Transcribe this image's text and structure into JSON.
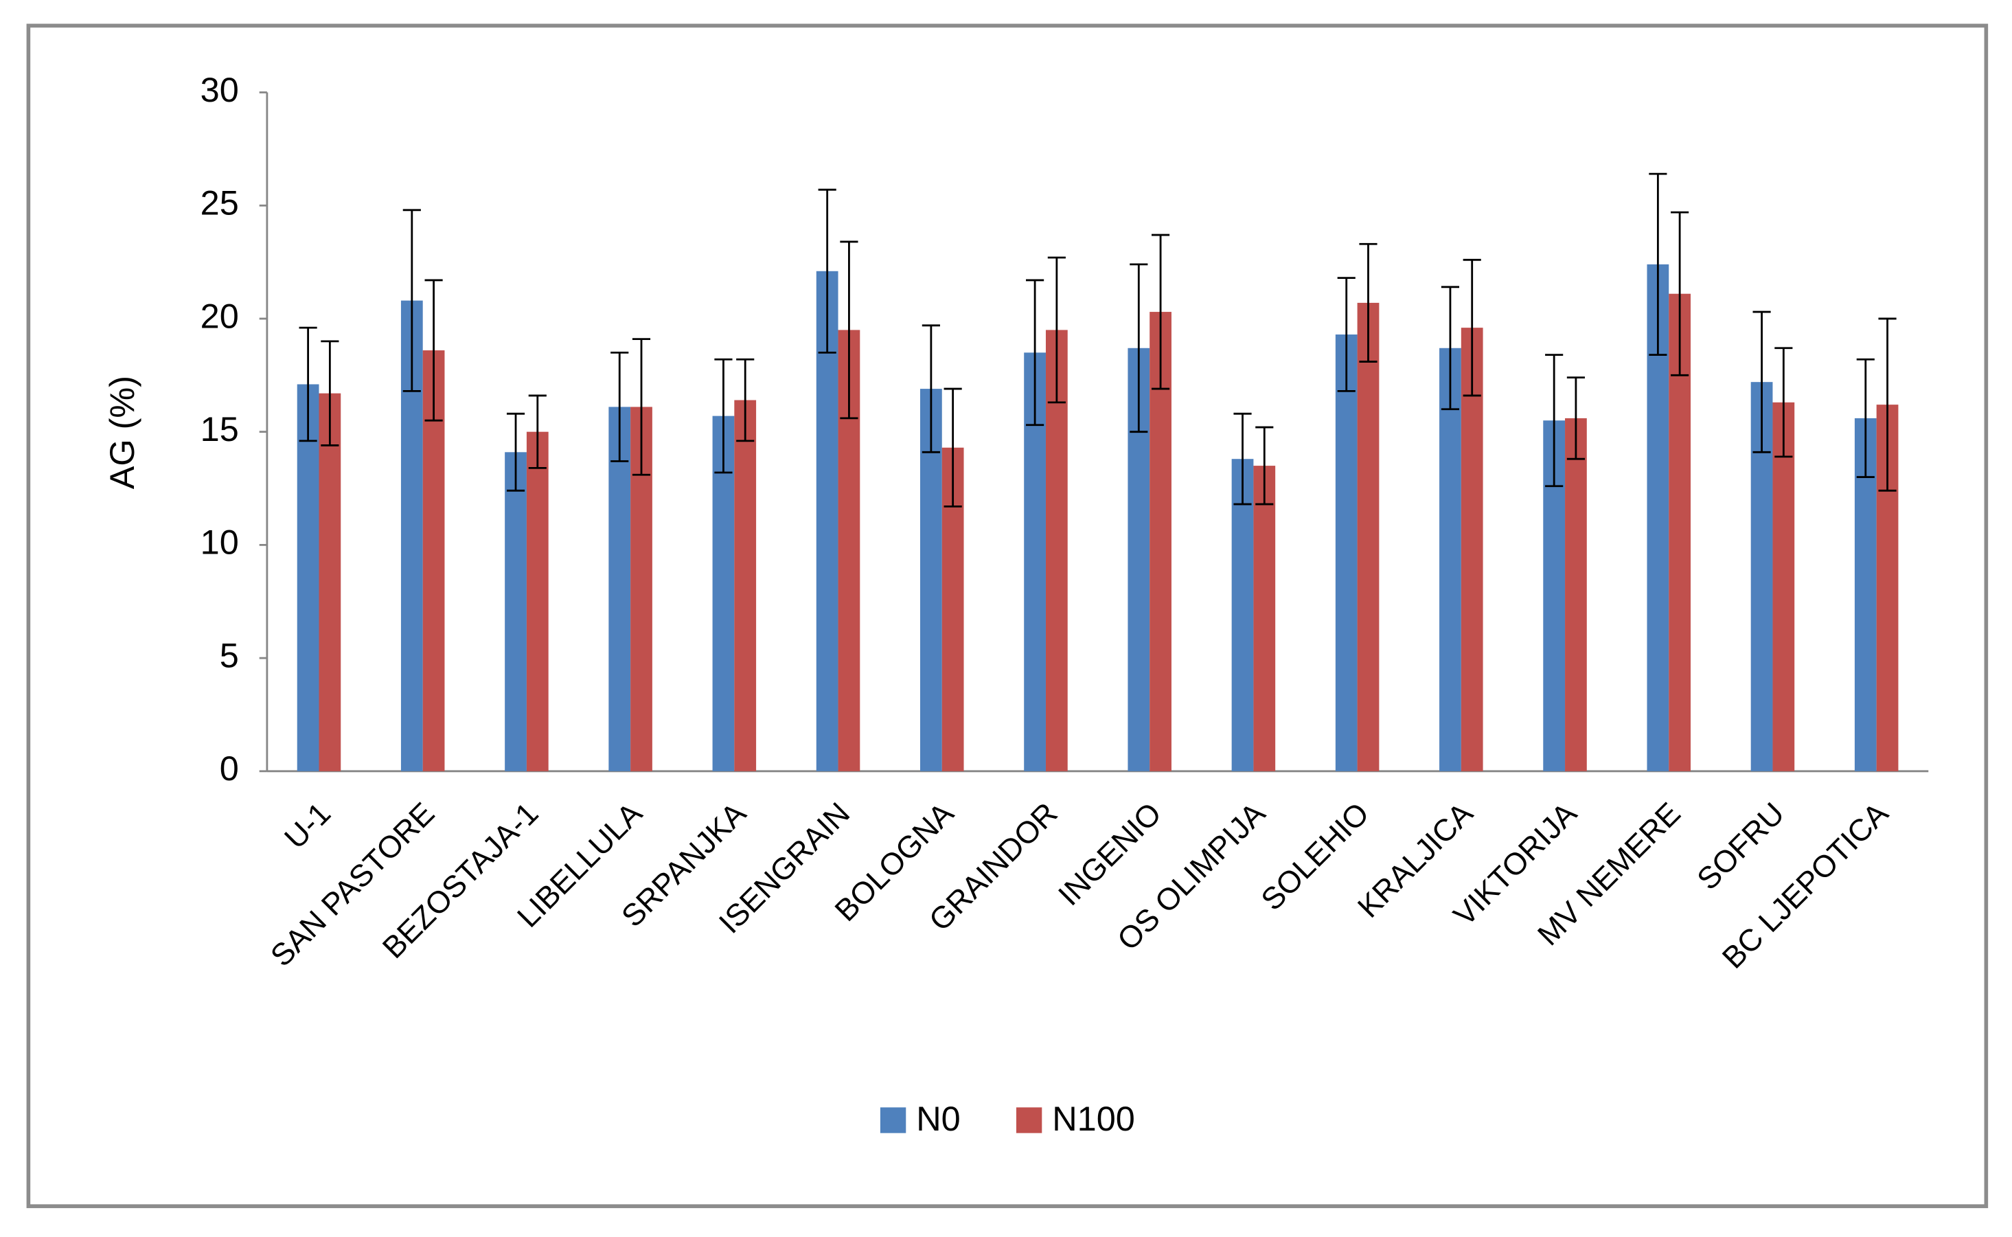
{
  "chart_data": {
    "type": "bar",
    "y_label": "AG (%)",
    "categories": [
      "U-1",
      "SAN PASTORE",
      "BEZOSTAJA-1",
      "LIBELLULA",
      "SRPANJKA",
      "ISENGRAIN",
      "BOLOGNA",
      "GRAINDOR",
      "INGENIO",
      "OS OLIMPIJA",
      "SOLEHIO",
      "KRALJICA",
      "VIKTORIJA",
      "MV NEMERE",
      "SOFRU",
      "BC LJEPOTICA"
    ],
    "series": [
      {
        "name": "N0",
        "color": "#4f81bd",
        "values": [
          17.1,
          20.8,
          14.1,
          16.1,
          15.7,
          22.1,
          16.9,
          18.5,
          18.7,
          13.8,
          19.3,
          18.7,
          15.5,
          22.4,
          17.2,
          15.6
        ],
        "errors": [
          2.5,
          4.0,
          1.7,
          2.4,
          2.5,
          3.6,
          2.8,
          3.2,
          3.7,
          2.0,
          2.5,
          2.7,
          2.9,
          4.0,
          3.1,
          2.6
        ]
      },
      {
        "name": "N100",
        "color": "#c0504d",
        "values": [
          16.7,
          18.6,
          15.0,
          16.1,
          16.4,
          19.5,
          14.3,
          19.5,
          20.3,
          13.5,
          20.7,
          19.6,
          15.6,
          21.1,
          16.3,
          16.2
        ],
        "errors": [
          2.3,
          3.1,
          1.6,
          3.0,
          1.8,
          3.9,
          2.6,
          3.2,
          3.4,
          1.7,
          2.6,
          3.0,
          1.8,
          3.6,
          2.4,
          3.8
        ]
      }
    ],
    "ylim": [
      0,
      30
    ],
    "yticks": [
      0,
      5,
      10,
      15,
      20,
      25,
      30
    ],
    "grid": false,
    "legend": "bottom"
  }
}
